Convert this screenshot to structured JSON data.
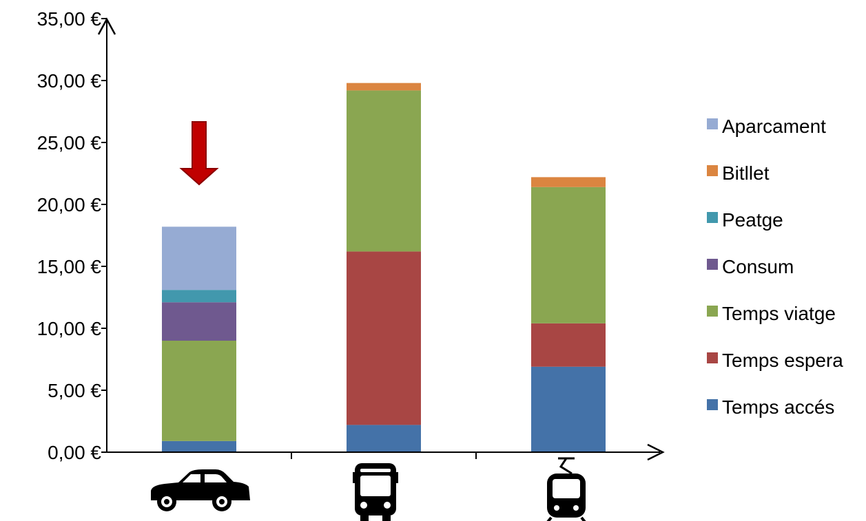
{
  "chart_data": {
    "type": "bar",
    "stacked": true,
    "categories": [
      "car-icon",
      "bus-icon",
      "tram-icon"
    ],
    "series": [
      {
        "name": "Temps accés",
        "color": "#4472A8",
        "values": [
          0.9,
          2.2,
          6.9
        ]
      },
      {
        "name": "Temps espera",
        "color": "#A84644",
        "values": [
          0,
          14.0,
          3.5
        ]
      },
      {
        "name": "Temps viatge",
        "color": "#8AA651",
        "values": [
          8.1,
          13.0,
          11.0
        ]
      },
      {
        "name": "Consum",
        "color": "#6F598F",
        "values": [
          3.1,
          0,
          0
        ]
      },
      {
        "name": "Peatge",
        "color": "#4298AD",
        "values": [
          1.0,
          0,
          0
        ]
      },
      {
        "name": "Bitllet",
        "color": "#DB8540",
        "values": [
          0,
          0.6,
          0.8
        ]
      },
      {
        "name": "Aparcament",
        "color": "#96ABD3",
        "values": [
          5.1,
          0,
          0
        ]
      }
    ],
    "ylim": [
      0,
      35
    ],
    "yticks": [
      "0,00 €",
      "5,00 €",
      "10,00 €",
      "15,00 €",
      "20,00 €",
      "25,00 €",
      "30,00 €",
      "35,00 €"
    ],
    "legend_position": "right",
    "legend_order": [
      "Aparcament",
      "Bitllet",
      "Peatge",
      "Consum",
      "Temps viatge",
      "Temps espera",
      "Temps accés"
    ],
    "grid": false,
    "annotations": [
      {
        "type": "arrow-down",
        "category": "car-icon",
        "color": "#C00000"
      }
    ]
  }
}
